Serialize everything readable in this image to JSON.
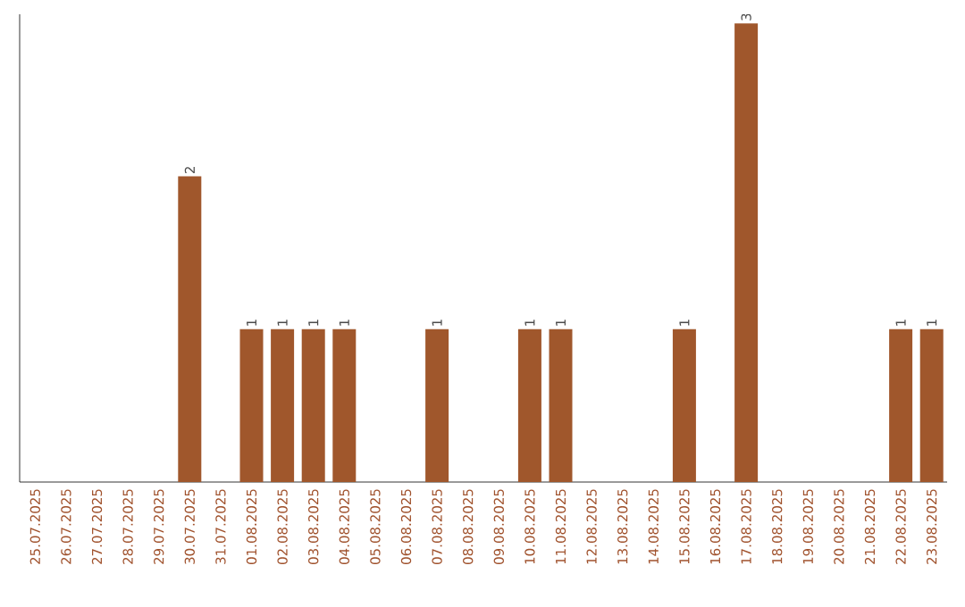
{
  "chart_data": {
    "type": "bar",
    "categories": [
      "25.07.2025",
      "26.07.2025",
      "27.07.2025",
      "28.07.2025",
      "29.07.2025",
      "30.07.2025",
      "31.07.2025",
      "01.08.2025",
      "02.08.2025",
      "03.08.2025",
      "04.08.2025",
      "05.08.2025",
      "06.08.2025",
      "07.08.2025",
      "08.08.2025",
      "09.08.2025",
      "10.08.2025",
      "11.08.2025",
      "12.08.2025",
      "13.08.2025",
      "14.08.2025",
      "15.08.2025",
      "16.08.2025",
      "17.08.2025",
      "18.08.2025",
      "19.08.2025",
      "20.08.2025",
      "21.08.2025",
      "22.08.2025",
      "23.08.2025"
    ],
    "values": [
      0,
      0,
      0,
      0,
      0,
      2,
      0,
      1,
      1,
      1,
      1,
      0,
      0,
      1,
      0,
      0,
      1,
      1,
      0,
      0,
      0,
      1,
      0,
      3,
      0,
      0,
      0,
      0,
      1,
      1
    ],
    "value_labels": [
      null,
      null,
      null,
      null,
      null,
      "2",
      null,
      "1",
      "1",
      "1",
      "1",
      null,
      null,
      "1",
      null,
      null,
      "1",
      "1",
      null,
      null,
      null,
      "1",
      null,
      "3",
      null,
      null,
      null,
      null,
      "1",
      "1"
    ],
    "color": "#a0572c",
    "tick_labels": "x"
  }
}
